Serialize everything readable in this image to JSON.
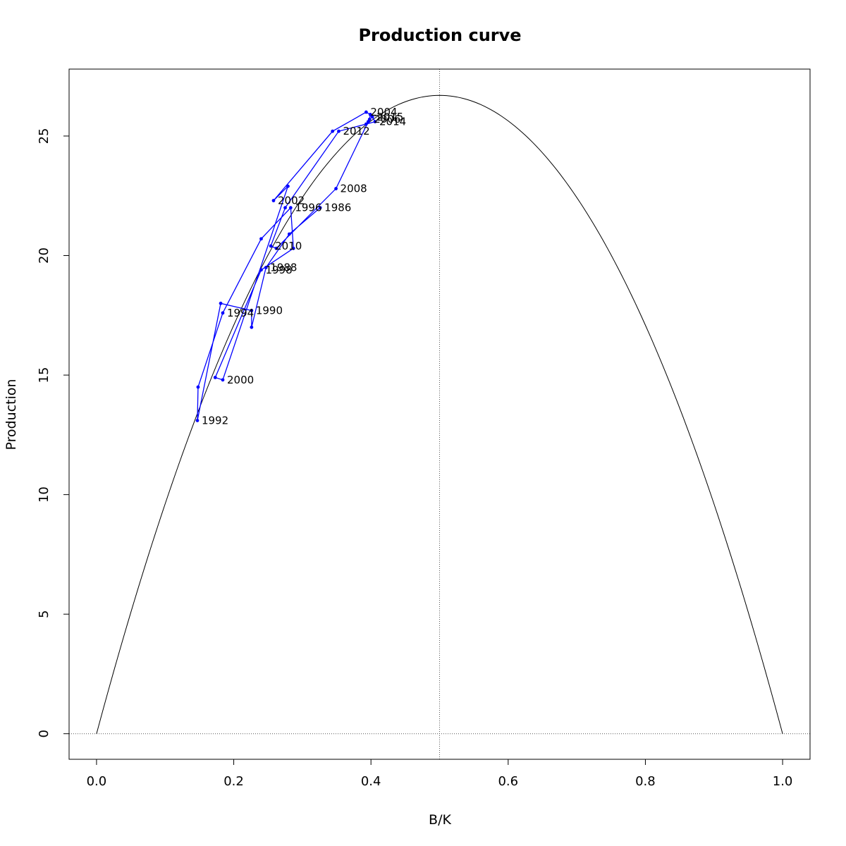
{
  "chart_data": {
    "type": "scatter",
    "title": "Production curve",
    "xlabel": "B/K",
    "ylabel": "Production",
    "xlim": [
      -0.04,
      1.04
    ],
    "ylim": [
      -1.07,
      27.8
    ],
    "xticks": [
      "0.0",
      "0.2",
      "0.4",
      "0.6",
      "0.8",
      "1.0"
    ],
    "yticks": [
      "0",
      "5",
      "10",
      "15",
      "20",
      "25"
    ],
    "grid": false,
    "legend": "none",
    "colors": {
      "series": "#0000ff",
      "curve": "#000000",
      "reference": "#555555"
    },
    "reference_lines": {
      "vertical_x": 0.5,
      "horizontal_y": 0
    },
    "curve": {
      "form": "parabola",
      "msy": 26.7,
      "peak_at": 0.5
    },
    "series": [
      {
        "points": [
          {
            "x": 0.326,
            "y": 22.0,
            "label": "1986"
          },
          {
            "x": 0.281,
            "y": 20.9,
            "label": ""
          },
          {
            "x": 0.247,
            "y": 19.5,
            "label": "1988"
          },
          {
            "x": 0.226,
            "y": 17.0,
            "label": ""
          },
          {
            "x": 0.226,
            "y": 17.7,
            "label": "1990"
          },
          {
            "x": 0.181,
            "y": 18.0,
            "label": ""
          },
          {
            "x": 0.147,
            "y": 13.1,
            "label": "1992"
          },
          {
            "x": 0.148,
            "y": 14.5,
            "label": ""
          },
          {
            "x": 0.184,
            "y": 17.6,
            "label": "1994"
          },
          {
            "x": 0.24,
            "y": 20.7,
            "label": ""
          },
          {
            "x": 0.283,
            "y": 22.0,
            "label": "1996"
          },
          {
            "x": 0.287,
            "y": 20.3,
            "label": ""
          },
          {
            "x": 0.24,
            "y": 19.4,
            "label": "1998"
          },
          {
            "x": 0.173,
            "y": 14.9,
            "label": ""
          },
          {
            "x": 0.184,
            "y": 14.8,
            "label": "2000"
          },
          {
            "x": 0.279,
            "y": 22.9,
            "label": ""
          },
          {
            "x": 0.258,
            "y": 22.3,
            "label": "2002"
          },
          {
            "x": 0.344,
            "y": 25.2,
            "label": ""
          },
          {
            "x": 0.393,
            "y": 26.0,
            "label": "2004"
          },
          {
            "x": 0.399,
            "y": 25.9,
            "label": ""
          },
          {
            "x": 0.398,
            "y": 25.7,
            "label": "2006"
          },
          {
            "x": 0.396,
            "y": 25.6,
            "label": ""
          },
          {
            "x": 0.349,
            "y": 22.8,
            "label": "2008"
          },
          {
            "x": 0.262,
            "y": 20.3,
            "label": ""
          },
          {
            "x": 0.254,
            "y": 20.4,
            "label": "2010"
          },
          {
            "x": 0.275,
            "y": 22.0,
            "label": ""
          },
          {
            "x": 0.353,
            "y": 25.2,
            "label": "2012"
          },
          {
            "x": 0.393,
            "y": 25.5,
            "label": ""
          },
          {
            "x": 0.406,
            "y": 25.6,
            "label": "2014"
          },
          {
            "x": 0.402,
            "y": 25.8,
            "label": "2015"
          }
        ]
      }
    ]
  }
}
